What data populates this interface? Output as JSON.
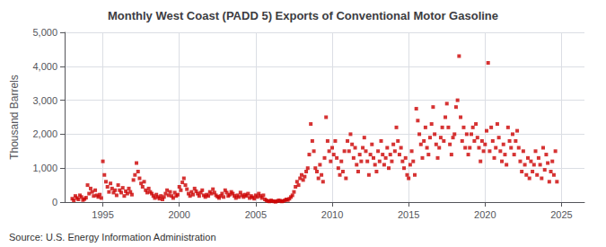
{
  "chart_data": {
    "type": "scatter",
    "title": "Monthly West Coast (PADD 5) Exports of Conventional Motor Gasoline",
    "ylabel": "Thousand Barrels",
    "annotations": [
      "Source: U.S. Energy Information Administration"
    ],
    "color": "#cc0000",
    "marker": "square",
    "grid": true,
    "xlim": [
      1992.5,
      2026.5
    ],
    "xticks": [
      1995,
      2000,
      2005,
      2010,
      2015,
      2020,
      2025
    ],
    "ylim": [
      0,
      5000
    ],
    "yticks": [
      0,
      {
        "value": 1000,
        "label": "1,000"
      },
      {
        "value": 2000,
        "label": "2,000"
      },
      {
        "value": 3000,
        "label": "3,000"
      },
      {
        "value": 4000,
        "label": "4,000"
      },
      {
        "value": 5000,
        "label": "5,000"
      }
    ],
    "x": [
      1993.0,
      1993.1,
      1993.2,
      1993.3,
      1993.4,
      1993.5,
      1993.6,
      1993.7,
      1993.8,
      1993.9,
      1994.0,
      1994.1,
      1994.2,
      1994.3,
      1994.4,
      1994.5,
      1994.6,
      1994.7,
      1994.8,
      1994.9,
      1995.0,
      1995.1,
      1995.2,
      1995.3,
      1995.4,
      1995.5,
      1995.6,
      1995.7,
      1995.8,
      1995.9,
      1996.0,
      1996.1,
      1996.2,
      1996.3,
      1996.4,
      1996.5,
      1996.6,
      1996.7,
      1996.8,
      1996.9,
      1997.0,
      1997.1,
      1997.2,
      1997.3,
      1997.4,
      1997.5,
      1997.6,
      1997.7,
      1997.8,
      1997.9,
      1998.0,
      1998.1,
      1998.2,
      1998.3,
      1998.4,
      1998.5,
      1998.6,
      1998.7,
      1998.8,
      1998.9,
      1999.0,
      1999.1,
      1999.2,
      1999.3,
      1999.4,
      1999.5,
      1999.6,
      1999.7,
      1999.8,
      1999.9,
      2000.0,
      2000.1,
      2000.2,
      2000.3,
      2000.4,
      2000.5,
      2000.6,
      2000.7,
      2000.8,
      2000.9,
      2001.0,
      2001.1,
      2001.2,
      2001.3,
      2001.4,
      2001.5,
      2001.6,
      2001.7,
      2001.8,
      2001.9,
      2002.0,
      2002.1,
      2002.2,
      2002.3,
      2002.4,
      2002.5,
      2002.6,
      2002.7,
      2002.8,
      2002.9,
      2003.0,
      2003.1,
      2003.2,
      2003.3,
      2003.4,
      2003.5,
      2003.6,
      2003.7,
      2003.8,
      2003.9,
      2004.0,
      2004.1,
      2004.2,
      2004.3,
      2004.4,
      2004.5,
      2004.6,
      2004.7,
      2004.8,
      2004.9,
      2005.0,
      2005.1,
      2005.2,
      2005.3,
      2005.4,
      2005.5,
      2005.6,
      2005.7,
      2005.8,
      2005.9,
      2006.0,
      2006.1,
      2006.2,
      2006.3,
      2006.4,
      2006.5,
      2006.6,
      2006.7,
      2006.8,
      2006.9,
      2007.0,
      2007.1,
      2007.2,
      2007.3,
      2007.4,
      2007.5,
      2007.6,
      2007.7,
      2007.8,
      2007.9,
      2008.0,
      2008.1,
      2008.2,
      2008.3,
      2008.4,
      2008.5,
      2008.6,
      2008.7,
      2008.8,
      2008.9,
      2009.0,
      2009.1,
      2009.2,
      2009.3,
      2009.4,
      2009.5,
      2009.6,
      2009.7,
      2009.8,
      2009.9,
      2010.0,
      2010.1,
      2010.2,
      2010.3,
      2010.4,
      2010.5,
      2010.6,
      2010.7,
      2010.8,
      2010.9,
      2011.0,
      2011.1,
      2011.2,
      2011.3,
      2011.4,
      2011.5,
      2011.6,
      2011.7,
      2011.8,
      2011.9,
      2012.0,
      2012.1,
      2012.2,
      2012.3,
      2012.4,
      2012.5,
      2012.6,
      2012.7,
      2012.8,
      2012.9,
      2013.0,
      2013.1,
      2013.2,
      2013.3,
      2013.4,
      2013.5,
      2013.6,
      2013.7,
      2013.8,
      2013.9,
      2014.0,
      2014.1,
      2014.2,
      2014.3,
      2014.4,
      2014.5,
      2014.6,
      2014.7,
      2014.8,
      2014.9,
      2015.0,
      2015.1,
      2015.2,
      2015.3,
      2015.4,
      2015.5,
      2015.6,
      2015.7,
      2015.8,
      2015.9,
      2016.0,
      2016.1,
      2016.2,
      2016.3,
      2016.4,
      2016.5,
      2016.6,
      2016.7,
      2016.8,
      2016.9,
      2017.0,
      2017.1,
      2017.2,
      2017.3,
      2017.4,
      2017.5,
      2017.6,
      2017.7,
      2017.8,
      2017.9,
      2018.0,
      2018.1,
      2018.2,
      2018.3,
      2018.4,
      2018.5,
      2018.6,
      2018.7,
      2018.8,
      2018.9,
      2019.0,
      2019.1,
      2019.2,
      2019.3,
      2019.4,
      2019.5,
      2019.6,
      2019.7,
      2019.8,
      2019.9,
      2020.0,
      2020.1,
      2020.2,
      2020.3,
      2020.4,
      2020.5,
      2020.6,
      2020.7,
      2020.8,
      2020.9,
      2021.0,
      2021.1,
      2021.2,
      2021.3,
      2021.4,
      2021.5,
      2021.6,
      2021.7,
      2021.8,
      2021.9,
      2022.0,
      2022.1,
      2022.2,
      2022.3,
      2022.4,
      2022.5,
      2022.6,
      2022.7,
      2022.8,
      2022.9,
      2023.0,
      2023.1,
      2023.2,
      2023.3,
      2023.4,
      2023.5,
      2023.6,
      2023.7,
      2023.8,
      2023.9,
      2024.0,
      2024.1,
      2024.2,
      2024.3,
      2024.4,
      2024.5,
      2024.6,
      2024.7
    ],
    "values": [
      100,
      50,
      180,
      120,
      80,
      200,
      150,
      60,
      90,
      130,
      500,
      250,
      400,
      300,
      180,
      350,
      200,
      150,
      220,
      120,
      1200,
      800,
      600,
      450,
      300,
      550,
      400,
      280,
      350,
      200,
      500,
      350,
      280,
      420,
      180,
      320,
      250,
      400,
      300,
      220,
      650,
      800,
      1150,
      900,
      700,
      550,
      450,
      600,
      350,
      280,
      400,
      300,
      250,
      180,
      120,
      220,
      150,
      100,
      180,
      80,
      150,
      250,
      350,
      200,
      300,
      180,
      120,
      280,
      180,
      220,
      450,
      350,
      580,
      700,
      500,
      380,
      250,
      180,
      300,
      220,
      400,
      320,
      250,
      180,
      280,
      350,
      200,
      150,
      220,
      180,
      300,
      250,
      380,
      280,
      200,
      160,
      120,
      180,
      250,
      150,
      350,
      280,
      180,
      220,
      300,
      250,
      180,
      120,
      200,
      150,
      280,
      200,
      150,
      220,
      180,
      250,
      120,
      180,
      140,
      100,
      200,
      150,
      250,
      180,
      120,
      200,
      80,
      50,
      30,
      20,
      50,
      30,
      20,
      10,
      30,
      50,
      40,
      20,
      30,
      50,
      80,
      60,
      100,
      150,
      200,
      300,
      450,
      600,
      500,
      700,
      800,
      650,
      750,
      900,
      1000,
      1400,
      2300,
      1800,
      1500,
      1000,
      900,
      700,
      1100,
      800,
      600,
      1300,
      2500,
      1800,
      1500,
      1200,
      1600,
      1400,
      1800,
      1300,
      1000,
      800,
      1200,
      900,
      1500,
      700,
      1800,
      1500,
      2000,
      1700,
      1300,
      1600,
      1100,
      900,
      1400,
      1200,
      1600,
      1900,
      1500,
      1200,
      800,
      1400,
      1700,
      1300,
      1100,
      900,
      1500,
      1200,
      1800,
      1400,
      1100,
      1300,
      1600,
      1000,
      1400,
      1200,
      1700,
      1500,
      2200,
      1800,
      1400,
      1600,
      1200,
      1000,
      1300,
      800,
      700,
      1100,
      1500,
      1200,
      800,
      2750,
      2400,
      2000,
      1700,
      1300,
      1800,
      2200,
      1600,
      1400,
      1900,
      2300,
      2800,
      2000,
      1700,
      1300,
      1600,
      1900,
      2200,
      1800,
      2500,
      2900,
      2200,
      1700,
      1400,
      1900,
      2000,
      2800,
      3000,
      4300,
      2500,
      1800,
      2200,
      1600,
      2000,
      1400,
      1600,
      2000,
      2200,
      1800,
      2300,
      1900,
      1600,
      1200,
      1800,
      1500,
      1700,
      2100,
      4100,
      1500,
      2200,
      1800,
      1300,
      1600,
      2300,
      1900,
      1500,
      1200,
      1700,
      1400,
      1100,
      2200,
      1800,
      1600,
      2000,
      1400,
      1800,
      2100,
      1600,
      1200,
      900,
      1500,
      1100,
      800,
      1300,
      700,
      1200,
      900,
      1100,
      1500,
      800,
      1300,
      1100,
      700,
      1600,
      950,
      1400,
      1150,
      600,
      900,
      1200,
      800,
      1500,
      600
    ]
  }
}
